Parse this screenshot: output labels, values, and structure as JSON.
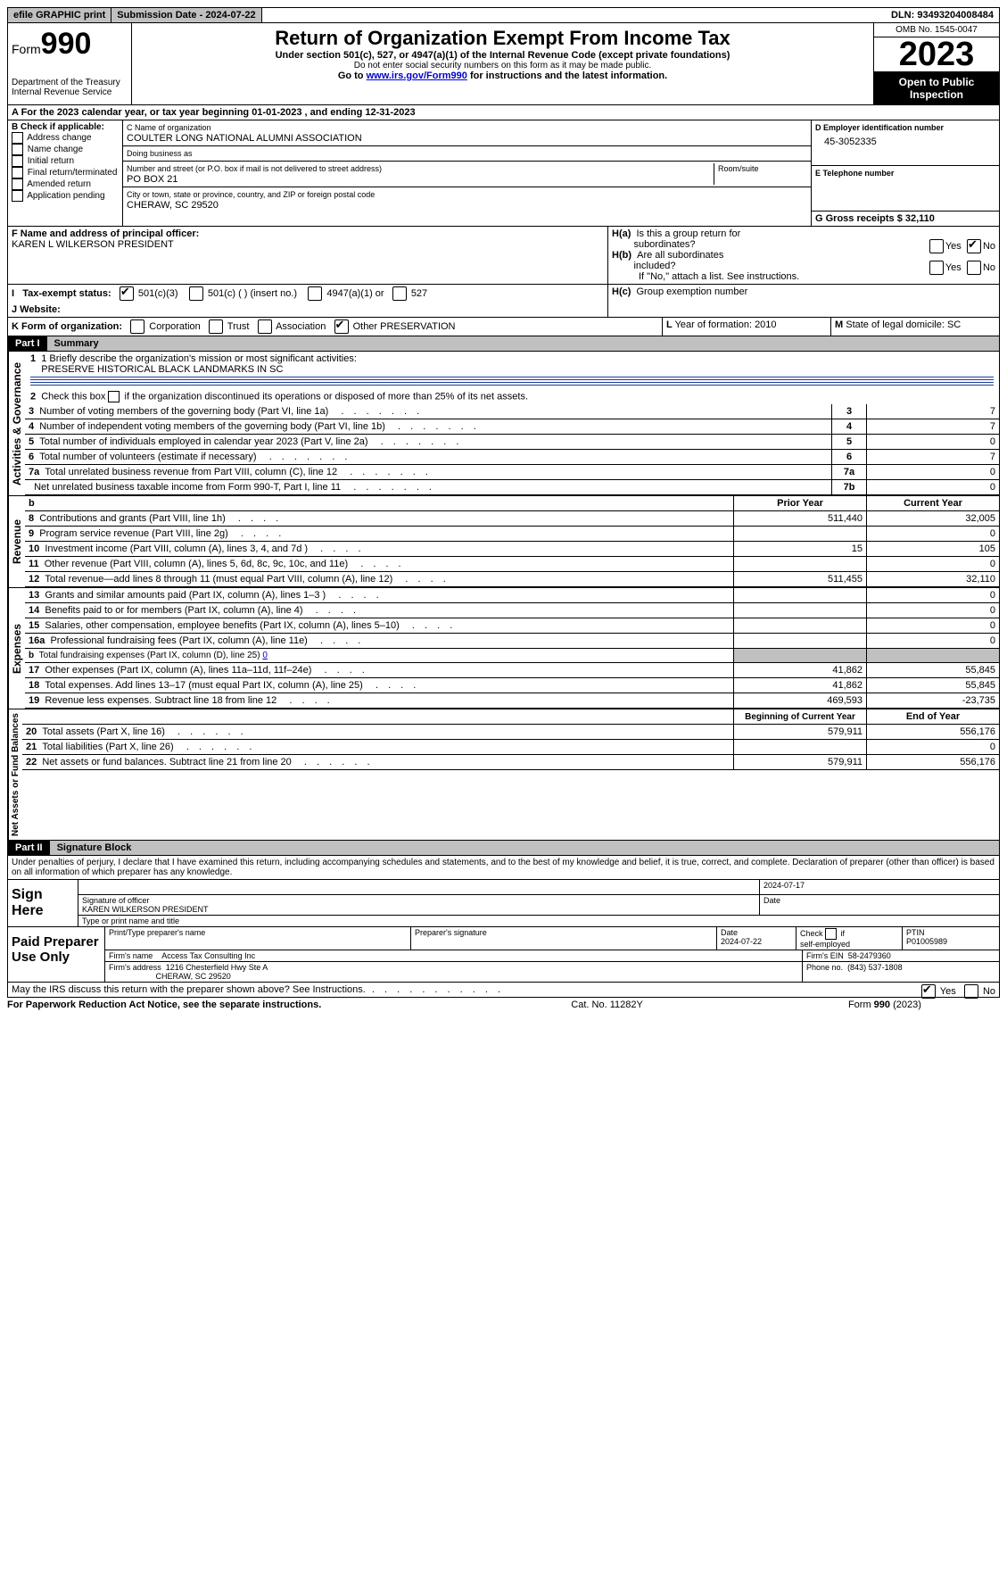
{
  "topbar": {
    "efile": "efile GRAPHIC print",
    "submission": "Submission Date - 2024-07-22",
    "dln": "DLN: 93493204008484"
  },
  "header": {
    "form_label": "Form",
    "form_num": "990",
    "dept": "Department of the Treasury Internal Revenue Service",
    "title": "Return of Organization Exempt From Income Tax",
    "sub1": "Under section 501(c), 527, or 4947(a)(1) of the Internal Revenue Code (except private foundations)",
    "sub2": "Do not enter social security numbers on this form as it may be made public.",
    "sub3_pre": "Go to ",
    "sub3_link": "www.irs.gov/Form990",
    "sub3_post": " for instructions and the latest information.",
    "omb": "OMB No. 1545-0047",
    "year": "2023",
    "open": "Open to Public Inspection"
  },
  "sectionA": "A  For the 2023 calendar year, or tax year beginning 01-01-2023   , and ending 12-31-2023",
  "boxB": {
    "label": "B Check if applicable:",
    "opts": [
      "Address change",
      "Name change",
      "Initial return",
      "Final return/terminated",
      "Amended return",
      "Application pending"
    ]
  },
  "boxC": {
    "name_label": "C Name of organization",
    "name": "COULTER LONG NATIONAL ALUMNI ASSOCIATION",
    "dba_label": "Doing business as",
    "street_label": "Number and street (or P.O. box if mail is not delivered to street address)",
    "street": "PO BOX 21",
    "room_label": "Room/suite",
    "city_label": "City or town, state or province, country, and ZIP or foreign postal code",
    "city": "CHERAW, SC  29520"
  },
  "boxD": {
    "label": "D Employer identification number",
    "value": "45-3052335"
  },
  "boxE": {
    "label": "E Telephone number"
  },
  "boxG": {
    "label": "G Gross receipts $ 32,110"
  },
  "boxF": {
    "label": "F  Name and address of principal officer:",
    "value": "KAREN L WILKERSON PRESIDENT"
  },
  "boxH": {
    "ha": "H(a)  Is this a group return for subordinates?",
    "hb": "H(b)  Are all subordinates included?",
    "hb_note": "If \"No,\" attach a list. See instructions.",
    "hc": "H(c)  Group exemption number",
    "yes": "Yes",
    "no": "No"
  },
  "boxI": {
    "label": "I  Tax-exempt status:",
    "opt1": "501(c)(3)",
    "opt2": "501(c) (  ) (insert no.)",
    "opt3": "4947(a)(1) or",
    "opt4": "527"
  },
  "boxJ": "J  Website:",
  "boxK": {
    "label": "K Form of organization:",
    "corp": "Corporation",
    "trust": "Trust",
    "assoc": "Association",
    "other": "Other  PRESERVATION"
  },
  "boxL": "L Year of formation: 2010",
  "boxM": "M State of legal domicile: SC",
  "part1": {
    "header": "Part I",
    "title": "Summary",
    "line1_label": "1  Briefly describe the organization's mission or most significant activities:",
    "line1_text": "PRESERVE HISTORICAL BLACK LANDMARKS IN SC",
    "line2": "Check this box      if the organization discontinued its operations or disposed of more than 25% of its net assets.",
    "sections": {
      "gov": "Activities & Governance",
      "rev": "Revenue",
      "exp": "Expenses",
      "net": "Net Assets or Fund Balances"
    },
    "rows_gov": [
      {
        "n": "3",
        "t": "Number of voting members of the governing body (Part VI, line 1a)",
        "box": "3",
        "v": "7"
      },
      {
        "n": "4",
        "t": "Number of independent voting members of the governing body (Part VI, line 1b)",
        "box": "4",
        "v": "7"
      },
      {
        "n": "5",
        "t": "Total number of individuals employed in calendar year 2023 (Part V, line 2a)",
        "box": "5",
        "v": "0"
      },
      {
        "n": "6",
        "t": "Total number of volunteers (estimate if necessary)",
        "box": "6",
        "v": "7"
      },
      {
        "n": "7a",
        "t": "Total unrelated business revenue from Part VIII, column (C), line 12",
        "box": "7a",
        "v": "0"
      },
      {
        "n": "",
        "t": "Net unrelated business taxable income from Form 990-T, Part I, line 11",
        "box": "7b",
        "v": "0"
      }
    ],
    "col_headers": {
      "prior": "Prior Year",
      "current": "Current Year",
      "boy": "Beginning of Current Year",
      "eoy": "End of Year"
    },
    "rows_rev": [
      {
        "n": "8",
        "t": "Contributions and grants (Part VIII, line 1h)",
        "p": "511,440",
        "c": "32,005"
      },
      {
        "n": "9",
        "t": "Program service revenue (Part VIII, line 2g)",
        "p": "",
        "c": "0"
      },
      {
        "n": "10",
        "t": "Investment income (Part VIII, column (A), lines 3, 4, and 7d )",
        "p": "15",
        "c": "105"
      },
      {
        "n": "11",
        "t": "Other revenue (Part VIII, column (A), lines 5, 6d, 8c, 9c, 10c, and 11e)",
        "p": "",
        "c": "0"
      },
      {
        "n": "12",
        "t": "Total revenue—add lines 8 through 11 (must equal Part VIII, column (A), line 12)",
        "p": "511,455",
        "c": "32,110"
      }
    ],
    "rows_exp": [
      {
        "n": "13",
        "t": "Grants and similar amounts paid (Part IX, column (A), lines 1–3 )",
        "p": "",
        "c": "0"
      },
      {
        "n": "14",
        "t": "Benefits paid to or for members (Part IX, column (A), line 4)",
        "p": "",
        "c": "0"
      },
      {
        "n": "15",
        "t": "Salaries, other compensation, employee benefits (Part IX, column (A), lines 5–10)",
        "p": "",
        "c": "0"
      },
      {
        "n": "16a",
        "t": "Professional fundraising fees (Part IX, column (A), line 11e)",
        "p": "",
        "c": "0"
      },
      {
        "n": "b",
        "t": "Total fundraising expenses (Part IX, column (D), line 25) ",
        "u": "0",
        "shade": true
      },
      {
        "n": "17",
        "t": "Other expenses (Part IX, column (A), lines 11a–11d, 11f–24e)",
        "p": "41,862",
        "c": "55,845"
      },
      {
        "n": "18",
        "t": "Total expenses. Add lines 13–17 (must equal Part IX, column (A), line 25)",
        "p": "41,862",
        "c": "55,845"
      },
      {
        "n": "19",
        "t": "Revenue less expenses. Subtract line 18 from line 12",
        "p": "469,593",
        "c": "-23,735"
      }
    ],
    "rows_net": [
      {
        "n": "20",
        "t": "Total assets (Part X, line 16)",
        "p": "579,911",
        "c": "556,176"
      },
      {
        "n": "21",
        "t": "Total liabilities (Part X, line 26)",
        "p": "",
        "c": "0"
      },
      {
        "n": "22",
        "t": "Net assets or fund balances. Subtract line 21 from line 20",
        "p": "579,911",
        "c": "556,176"
      }
    ]
  },
  "part2": {
    "header": "Part II",
    "title": "Signature Block",
    "decl": "Under penalties of perjury, I declare that I have examined this return, including accompanying schedules and statements, and to the best of my knowledge and belief, it is true, correct, and complete. Declaration of preparer (other than officer) is based on all information of which preparer has any knowledge."
  },
  "sign": {
    "here": "Sign Here",
    "date": "2024-07-17",
    "sig_label": "Signature of officer",
    "name": "KAREN WILKERSON PRESIDENT",
    "name_label": "Type or print name and title",
    "date_label": "Date"
  },
  "preparer": {
    "label": "Paid Preparer Use Only",
    "print_label": "Print/Type preparer's name",
    "sig_label": "Preparer's signature",
    "date_label": "Date",
    "date": "2024-07-22",
    "check_label": "Check         if self-employed",
    "ptin_label": "PTIN",
    "ptin": "P01005989",
    "firm_name_label": "Firm's name",
    "firm_name": "Access Tax Consulting Inc",
    "firm_ein_label": "Firm's EIN",
    "firm_ein": "58-2479360",
    "firm_addr_label": "Firm's address",
    "firm_addr1": "1216 Chesterfield Hwy Ste A",
    "firm_addr2": "CHERAW, SC  29520",
    "phone_label": "Phone no.",
    "phone": "(843) 537-1808"
  },
  "discuss": {
    "text": "May the IRS discuss this return with the preparer shown above? See Instructions.",
    "yes": "Yes",
    "no": "No"
  },
  "footer": {
    "left": "For Paperwork Reduction Act Notice, see the separate instructions.",
    "mid": "Cat. No. 11282Y",
    "right_pre": "Form ",
    "right_b": "990",
    "right_post": " (2023)"
  }
}
